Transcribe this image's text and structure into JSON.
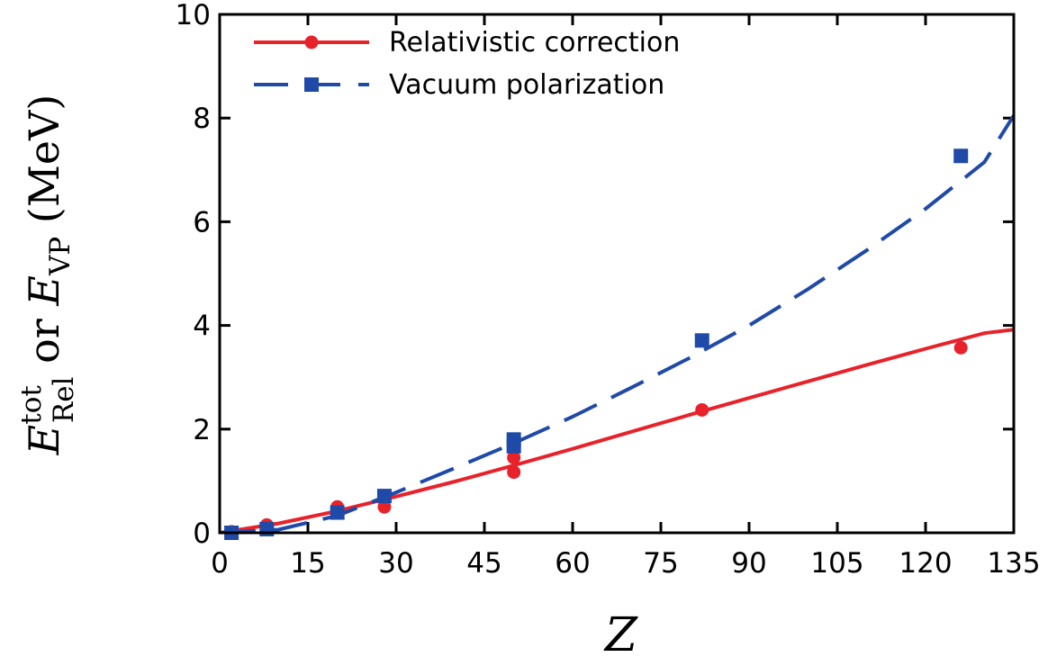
{
  "chart_data": {
    "type": "line",
    "title": "",
    "xlabel": "Z",
    "ylabel": {
      "base1": "E",
      "sup1": "tot",
      "sub1": "Rel",
      "connector": " or ",
      "base2": "E",
      "sub2": "VP",
      "unit": " (MeV)"
    },
    "xlim": [
      0,
      135
    ],
    "ylim": [
      0,
      10
    ],
    "xticks": [
      0,
      15,
      30,
      45,
      60,
      75,
      90,
      105,
      120,
      135
    ],
    "yticks": [
      0,
      2,
      4,
      6,
      8,
      10
    ],
    "grid": false,
    "legend_position": "top-left",
    "series": [
      {
        "name": "Relativistic correction",
        "color": "#e8222b",
        "line_style": "solid",
        "marker": "circle",
        "fit_curve": {
          "x": [
            0,
            10,
            20,
            30,
            40,
            50,
            60,
            70,
            80,
            90,
            100,
            110,
            120,
            130,
            135
          ],
          "y": [
            0.0,
            0.18,
            0.42,
            0.7,
            0.99,
            1.3,
            1.62,
            1.95,
            2.28,
            2.6,
            2.92,
            3.24,
            3.55,
            3.85,
            3.92
          ]
        },
        "points": [
          {
            "x": 2,
            "y": 0.02
          },
          {
            "x": 8,
            "y": 0.15
          },
          {
            "x": 20,
            "y": 0.5
          },
          {
            "x": 28,
            "y": 0.5
          },
          {
            "x": 50,
            "y": 1.45
          },
          {
            "x": 50,
            "y": 1.17
          },
          {
            "x": 82,
            "y": 2.37
          },
          {
            "x": 126,
            "y": 3.57
          }
        ]
      },
      {
        "name": "Vacuum polarization",
        "color": "#1f4aa8",
        "line_style": "dashed",
        "marker": "square",
        "fit_curve": {
          "x": [
            0,
            10,
            20,
            30,
            40,
            50,
            60,
            70,
            80,
            90,
            100,
            110,
            120,
            130,
            135
          ],
          "y": [
            0.0,
            0.06,
            0.33,
            0.78,
            1.25,
            1.73,
            2.24,
            2.8,
            3.38,
            4.0,
            4.7,
            5.45,
            6.25,
            7.15,
            8.05
          ]
        },
        "points": [
          {
            "x": 2,
            "y": 0.0
          },
          {
            "x": 8,
            "y": 0.07
          },
          {
            "x": 20,
            "y": 0.39
          },
          {
            "x": 28,
            "y": 0.71
          },
          {
            "x": 50,
            "y": 1.8
          },
          {
            "x": 50,
            "y": 1.67
          },
          {
            "x": 82,
            "y": 3.71
          },
          {
            "x": 126,
            "y": 7.27
          }
        ]
      }
    ]
  }
}
